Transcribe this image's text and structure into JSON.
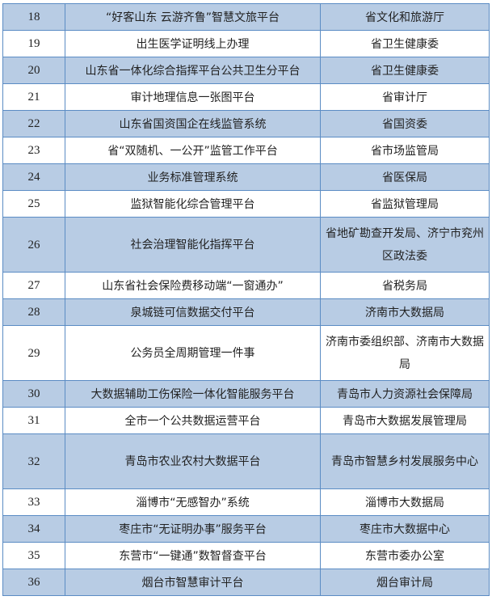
{
  "colors": {
    "stripe": "#b8cce4",
    "border": "#5b8cc4"
  },
  "rows": [
    {
      "no": "18",
      "name": "“好客山东 云游齐鲁”智慧文旅平台",
      "dept": "省文化和旅游厅"
    },
    {
      "no": "19",
      "name": "出生医学证明线上办理",
      "dept": "省卫生健康委"
    },
    {
      "no": "20",
      "name": "山东省一体化综合指挥平台公共卫生分平台",
      "dept": "省卫生健康委"
    },
    {
      "no": "21",
      "name": "审计地理信息一张图平台",
      "dept": "省审计厅"
    },
    {
      "no": "22",
      "name": "山东省国资国企在线监管系统",
      "dept": "省国资委"
    },
    {
      "no": "23",
      "name": "省“双随机、一公开”监管工作平台",
      "dept": "省市场监管局"
    },
    {
      "no": "24",
      "name": "业务标准管理系统",
      "dept": "省医保局"
    },
    {
      "no": "25",
      "name": "监狱智能化综合管理平台",
      "dept": "省监狱管理局"
    },
    {
      "no": "26",
      "name": "社会治理智能化指挥平台",
      "dept": "省地矿勘查开发局、济宁市兖州区政法委"
    },
    {
      "no": "27",
      "name": "山东省社会保险费移动端“一窗通办”",
      "dept": "省税务局"
    },
    {
      "no": "28",
      "name": "泉城链可信数据交付平台",
      "dept": "济南市大数据局"
    },
    {
      "no": "29",
      "name": "公务员全周期管理一件事",
      "dept": "济南市委组织部、济南市大数据局"
    },
    {
      "no": "30",
      "name": "大数据辅助工伤保险一体化智能服务平台",
      "dept": "青岛市人力资源社会保障局"
    },
    {
      "no": "31",
      "name": "全市一个公共数据运营平台",
      "dept": "青岛市大数据发展管理局"
    },
    {
      "no": "32",
      "name": "青岛市农业农村大数据平台",
      "dept": "青岛市智慧乡村发展服务中心"
    },
    {
      "no": "33",
      "name": "淄博市“无感智办”系统",
      "dept": "淄博市大数据局"
    },
    {
      "no": "34",
      "name": "枣庄市“无证明办事”服务平台",
      "dept": "枣庄市大数据中心"
    },
    {
      "no": "35",
      "name": "东营市“一键通”数智督查平台",
      "dept": "东营市委办公室"
    },
    {
      "no": "36",
      "name": "烟台市智慧审计平台",
      "dept": "烟台审计局"
    }
  ]
}
